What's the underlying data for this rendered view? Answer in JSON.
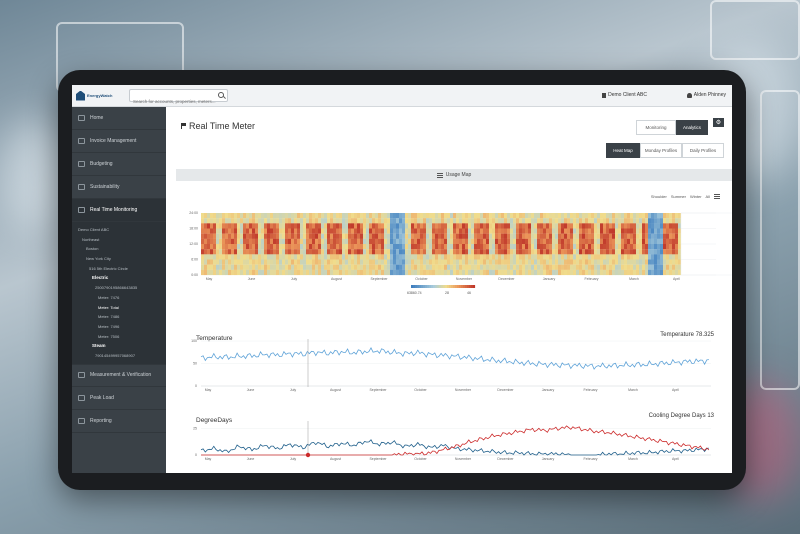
{
  "colors": {
    "sidebar": "#3a4147",
    "accent_dark": "#3a4147",
    "temperature_line": "#5fa3d8",
    "degree_heating": "#1f5f8b",
    "degree_cooling": "#cc2a2a",
    "heat_low": "#3f7fbf",
    "heat_high": "#c0392b"
  },
  "header": {
    "logo_text": "EnergyWatch",
    "search_placeholder": "Search for accounts, properties, meters....",
    "client": "Demo Client ABC",
    "user": "Alden Phinney"
  },
  "sidebar": {
    "nav_top": [
      {
        "label": "Home",
        "icon": "home-icon"
      },
      {
        "label": "Invoice Management",
        "icon": "invoice-icon"
      },
      {
        "label": "Budgeting",
        "icon": "budget-icon"
      },
      {
        "label": "Sustainability",
        "icon": "leaf-icon"
      },
      {
        "label": "Real Time Monitoring",
        "icon": "gauge-icon"
      }
    ],
    "tree": [
      "Demo Client ABC",
      "Northeast",
      "Boston",
      "New York City",
      "516 5th Electric Circle",
      "Electric",
      "2500790195866643835",
      "Meter: 7476",
      "Meter: Total",
      "Meter: 7486",
      "Meter: 7496",
      "Meter: 7506",
      "Steam",
      "790145499957068907"
    ],
    "nav_bottom": [
      {
        "label": "Measurement & Verification",
        "icon": "clipboard-icon"
      },
      {
        "label": "Peak Load",
        "icon": "peak-icon"
      },
      {
        "label": "Reporting",
        "icon": "report-icon"
      }
    ]
  },
  "main": {
    "title": "Real Time Meter",
    "tabs": [
      "Monitoring",
      "Analytics"
    ],
    "view_tabs": [
      "Heat Map",
      "Monday Profiles",
      "Daily Profiles"
    ],
    "usage_map_label": "Usage Map",
    "season_filters": [
      "Shoulder",
      "Summer",
      "Winter",
      "All"
    ],
    "temperature_title": "Temperature",
    "temperature_readout": "Temperature 78.325",
    "degreedays_title": "DegreeDays",
    "degreedays_readout": "Cooling Degree Days 13"
  },
  "chart_data": [
    {
      "type": "heatmap",
      "x_labels": [
        "May",
        "June",
        "July",
        "August",
        "September",
        "October",
        "November",
        "December",
        "January",
        "February",
        "March",
        "April"
      ],
      "y_ticks": [
        "24:00",
        "18:00",
        "12:00",
        "6:00",
        "0:00"
      ],
      "legend": [
        "63860.74",
        "28",
        "46"
      ]
    },
    {
      "type": "line",
      "series": [
        {
          "name": "Temperature",
          "values": [
            62,
            65,
            64,
            66,
            67,
            70,
            69,
            72,
            71,
            75,
            73,
            76,
            74,
            77,
            78,
            75,
            72,
            74,
            70,
            68,
            66,
            63,
            60,
            57,
            55,
            52,
            50,
            48,
            47,
            46,
            45,
            44,
            45,
            46,
            47,
            48,
            50,
            52,
            54,
            55,
            57
          ]
        }
      ],
      "x_labels": [
        "May",
        "June",
        "July",
        "August",
        "September",
        "October",
        "November",
        "December",
        "January",
        "February",
        "March",
        "April"
      ],
      "y_ticks": [
        "100",
        "50",
        "0"
      ],
      "ylim": [
        0,
        100
      ]
    },
    {
      "type": "line",
      "series": [
        {
          "name": "Cooling Degree Days",
          "values": [
            4,
            6,
            3,
            8,
            5,
            9,
            6,
            10,
            7,
            12,
            8,
            11,
            9,
            13,
            10,
            12,
            8,
            10,
            7,
            9,
            6,
            5,
            4,
            3,
            2,
            2,
            1,
            1,
            1,
            0,
            0,
            0,
            1,
            1,
            2,
            2,
            3,
            4,
            4,
            5,
            6
          ]
        },
        {
          "name": "Heating Degree Days",
          "values": [
            0,
            0,
            0,
            0,
            0,
            0,
            0,
            0,
            0,
            0,
            0,
            0,
            0,
            0,
            0,
            0,
            1,
            1,
            2,
            5,
            8,
            12,
            15,
            18,
            20,
            22,
            24,
            23,
            25,
            26,
            24,
            22,
            21,
            19,
            17,
            15,
            13,
            11,
            9,
            7,
            5
          ]
        }
      ],
      "x_labels": [
        "May",
        "June",
        "July",
        "August",
        "September",
        "October",
        "November",
        "December",
        "January",
        "February",
        "March",
        "April"
      ],
      "y_ticks": [
        "25",
        "0"
      ],
      "ylim": [
        0,
        30
      ]
    }
  ]
}
